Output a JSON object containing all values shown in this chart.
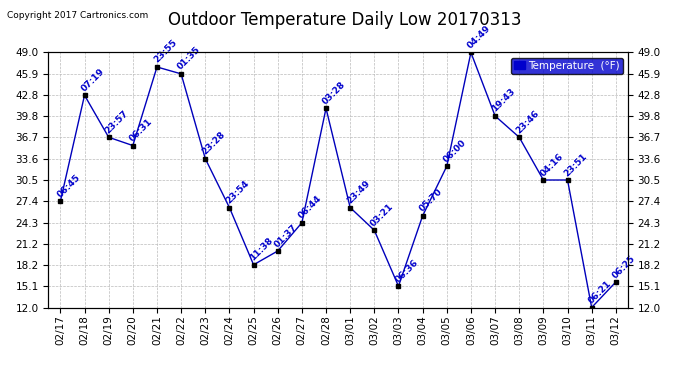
{
  "title": "Outdoor Temperature Daily Low 20170313",
  "copyright": "Copyright 2017 Cartronics.com",
  "legend_label": "Temperature  (°F)",
  "dates": [
    "02/17",
    "02/18",
    "02/19",
    "02/20",
    "02/21",
    "02/22",
    "02/23",
    "02/24",
    "02/25",
    "02/26",
    "02/27",
    "02/28",
    "03/01",
    "03/02",
    "03/03",
    "03/04",
    "03/05",
    "03/06",
    "03/07",
    "03/08",
    "03/09",
    "03/10",
    "03/11",
    "03/12"
  ],
  "values": [
    27.4,
    42.8,
    36.7,
    35.5,
    46.9,
    45.9,
    33.6,
    26.5,
    18.2,
    20.2,
    24.3,
    40.9,
    26.5,
    23.2,
    15.1,
    25.3,
    32.5,
    49.0,
    39.8,
    36.7,
    30.5,
    30.5,
    12.0,
    15.7
  ],
  "labels": [
    "06:45",
    "07:19",
    "23:57",
    "06:31",
    "23:55",
    "01:35",
    "23:28",
    "23:54",
    "11:38",
    "01:37",
    "06:44",
    "03:28",
    "23:49",
    "03:21",
    "06:36",
    "05:70",
    "06:00",
    "04:49",
    "19:43",
    "23:46",
    "04:16",
    "23:51",
    "06:21",
    "06:25"
  ],
  "ylim_min": 12.0,
  "ylim_max": 49.0,
  "yticks": [
    12.0,
    15.1,
    18.2,
    21.2,
    24.3,
    27.4,
    30.5,
    33.6,
    36.7,
    39.8,
    42.8,
    45.9,
    49.0
  ],
  "line_color": "#0000bb",
  "marker_color": "#000000",
  "label_color": "#0000cc",
  "grid_color": "#bbbbbb",
  "background_color": "#ffffff",
  "legend_bg": "#0000cc",
  "legend_fg": "#ffffff",
  "title_fontsize": 12,
  "label_fontsize": 6.5,
  "tick_fontsize": 7.5,
  "copyright_fontsize": 6.5
}
